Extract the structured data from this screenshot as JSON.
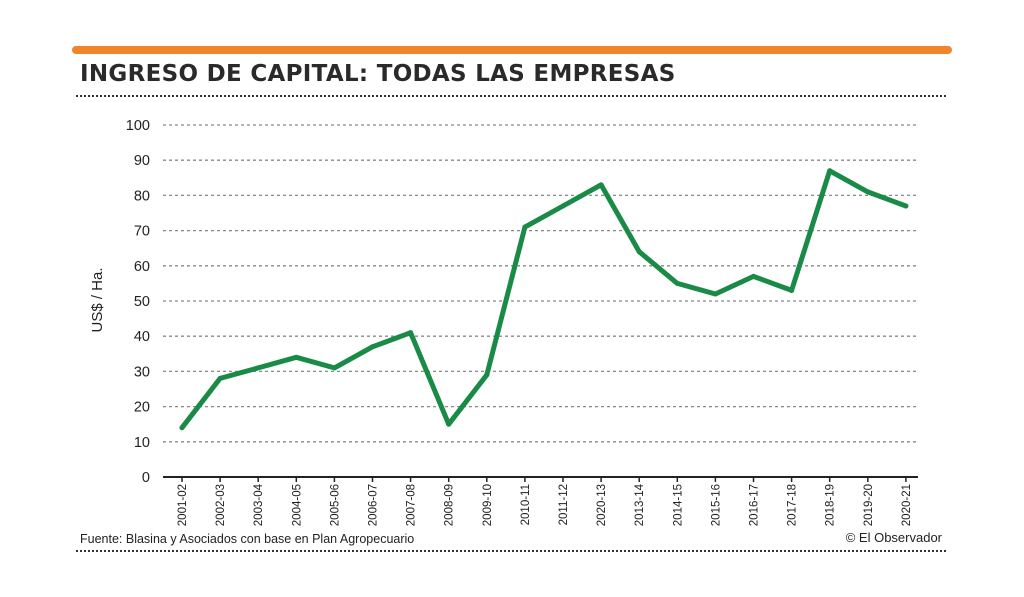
{
  "colors": {
    "accent_bar": "#f0852a",
    "line": "#1a8a47",
    "grid": "#8a8a8a",
    "axis": "#222222"
  },
  "footer": {
    "source": "Fuente: Blasina y Asociados con base en Plan Agropecuario",
    "credit": "© El Observador"
  },
  "chart_data": {
    "type": "line",
    "title": "INGRESO DE CAPITAL: TODAS LAS EMPRESAS",
    "xlabel": "",
    "ylabel": "US$ / Ha.",
    "ylim": [
      0,
      100
    ],
    "yticks": [
      0,
      10,
      20,
      30,
      40,
      50,
      60,
      70,
      80,
      90,
      100
    ],
    "grid": true,
    "categories": [
      "2001-02",
      "2002-03",
      "2003-04",
      "2004-05",
      "2005-06",
      "2006-07",
      "2007-08",
      "2008-09",
      "2009-10",
      "2010-11",
      "2011-12",
      "2020-13",
      "2013-14",
      "2014-15",
      "2015-16",
      "2016-17",
      "2017-18",
      "2018-19",
      "2019-20",
      "2020-21"
    ],
    "series": [
      {
        "values": [
          14,
          28,
          31,
          34,
          31,
          37,
          41,
          15,
          29,
          71,
          77,
          83,
          64,
          55,
          52,
          57,
          53,
          87,
          81,
          77
        ]
      }
    ]
  }
}
